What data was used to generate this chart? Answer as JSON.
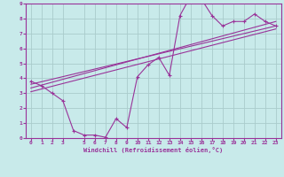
{
  "xlabel": "Windchill (Refroidissement éolien,°C)",
  "bg_color": "#c8eaea",
  "grid_color": "#aacccc",
  "line_color": "#993399",
  "xlim": [
    -0.5,
    23.5
  ],
  "ylim": [
    0,
    9
  ],
  "xticks": [
    0,
    1,
    2,
    3,
    5,
    6,
    7,
    8,
    9,
    10,
    11,
    12,
    13,
    14,
    15,
    16,
    17,
    18,
    19,
    20,
    21,
    22,
    23
  ],
  "yticks": [
    0,
    1,
    2,
    3,
    4,
    5,
    6,
    7,
    8,
    9
  ],
  "data_x": [
    0,
    1,
    2,
    3,
    4,
    5,
    6,
    7,
    8,
    9,
    10,
    11,
    12,
    13,
    14,
    15,
    16,
    17,
    18,
    19,
    20,
    21,
    22,
    23
  ],
  "data_y": [
    3.8,
    3.5,
    3.0,
    2.5,
    0.5,
    0.2,
    0.2,
    0.05,
    1.3,
    0.7,
    4.1,
    4.9,
    5.4,
    4.2,
    8.2,
    9.5,
    9.3,
    8.2,
    7.5,
    7.8,
    7.8,
    8.3,
    7.8,
    7.5
  ],
  "trend1_x": [
    0,
    23
  ],
  "trend1_y": [
    3.6,
    7.5
  ],
  "trend2_x": [
    0,
    23
  ],
  "trend2_y": [
    3.1,
    7.3
  ],
  "trend3_x": [
    0,
    23
  ],
  "trend3_y": [
    3.35,
    7.8
  ]
}
